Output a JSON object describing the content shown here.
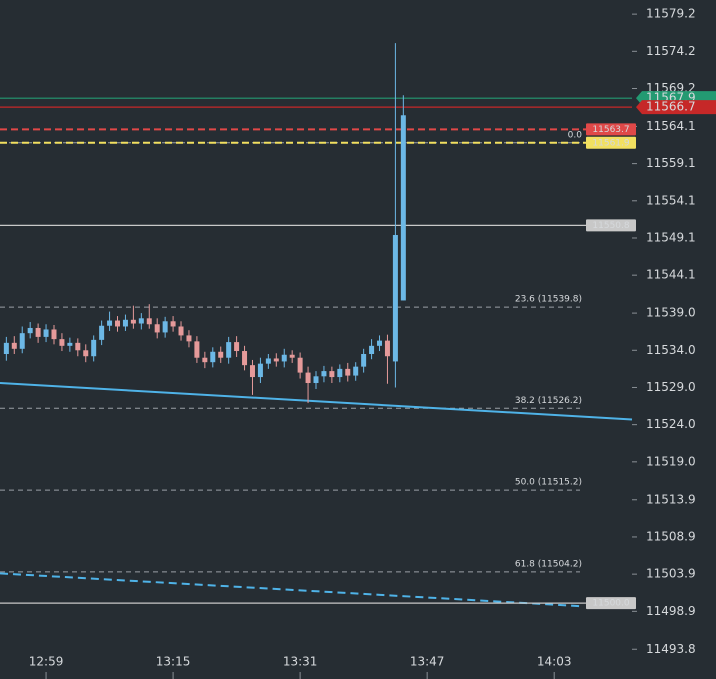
{
  "chart_data": {
    "type": "candlestick",
    "background": "#262d33",
    "up_color": "#6cb8e6",
    "down_color": "#e59a9a",
    "x": [
      774,
      775,
      776,
      777,
      778,
      779,
      780,
      781,
      782,
      783,
      784,
      785,
      786,
      787,
      788,
      789,
      790,
      791,
      792,
      793,
      794,
      795,
      796,
      797,
      798,
      799,
      800,
      801,
      802,
      803,
      804,
      805,
      806,
      807,
      808,
      809,
      810,
      811,
      812,
      813,
      814,
      815,
      816,
      817,
      818,
      819,
      820,
      821,
      822,
      823,
      824
    ],
    "open": [
      11533.5,
      11535.0,
      11534.2,
      11536.3,
      11537.0,
      11535.8,
      11536.8,
      11535.5,
      11534.6,
      11535.0,
      11534.0,
      11533.2,
      11535.4,
      11537.3,
      11538.0,
      11537.2,
      11538.1,
      11537.6,
      11538.3,
      11537.5,
      11536.4,
      11537.9,
      11537.2,
      11536.0,
      11535.2,
      11533.0,
      11532.4,
      11533.8,
      11533.0,
      11535.1,
      11533.9,
      11532.0,
      11530.4,
      11532.2,
      11532.9,
      11532.5,
      11533.4,
      11533.0,
      11531.0,
      11529.6,
      11530.5,
      11531.2,
      11530.4,
      11531.5,
      11530.6,
      11531.8,
      11533.5,
      11534.6,
      11535.3,
      11532.5,
      11540.7
    ],
    "high": [
      11535.8,
      11535.9,
      11537.2,
      11537.8,
      11537.6,
      11537.5,
      11537.4,
      11536.3,
      11535.7,
      11535.6,
      11534.8,
      11536.0,
      11538.0,
      11539.2,
      11538.6,
      11538.8,
      11540.0,
      11539.0,
      11540.2,
      11538.3,
      11538.5,
      11538.6,
      11537.9,
      11536.7,
      11535.9,
      11533.8,
      11534.4,
      11534.5,
      11535.8,
      11535.9,
      11534.6,
      11532.7,
      11533.0,
      11533.5,
      11533.6,
      11534.2,
      11534.0,
      11533.7,
      11531.8,
      11531.2,
      11531.9,
      11531.8,
      11532.1,
      11532.3,
      11532.4,
      11534.2,
      11535.5,
      11536.0,
      11536.1,
      11575.3,
      11568.3
    ],
    "low": [
      11532.6,
      11533.5,
      11533.6,
      11535.6,
      11535.0,
      11535.1,
      11534.8,
      11533.9,
      11533.8,
      11533.2,
      11532.4,
      11532.5,
      11534.7,
      11536.6,
      11536.5,
      11536.6,
      11536.9,
      11536.8,
      11536.9,
      11535.6,
      11535.7,
      11536.5,
      11535.3,
      11534.4,
      11532.3,
      11531.6,
      11531.7,
      11532.3,
      11532.2,
      11533.1,
      11531.3,
      11528.0,
      11529.6,
      11531.5,
      11531.8,
      11531.7,
      11532.3,
      11530.2,
      11526.9,
      11528.8,
      11529.7,
      11529.6,
      11529.7,
      11529.8,
      11529.9,
      11531.0,
      11532.8,
      11533.9,
      11529.5,
      11529.0,
      11540.7
    ],
    "close": [
      11535.0,
      11534.2,
      11536.3,
      11537.0,
      11535.8,
      11536.8,
      11535.5,
      11534.6,
      11535.0,
      11534.0,
      11533.2,
      11535.4,
      11537.3,
      11538.0,
      11537.2,
      11538.1,
      11537.6,
      11538.3,
      11537.5,
      11536.4,
      11537.9,
      11537.2,
      11536.0,
      11535.2,
      11533.0,
      11532.4,
      11533.8,
      11533.0,
      11535.1,
      11533.9,
      11532.0,
      11530.4,
      11532.2,
      11532.9,
      11532.5,
      11533.4,
      11533.0,
      11531.0,
      11529.6,
      11530.5,
      11531.2,
      11530.4,
      11531.5,
      11530.6,
      11531.8,
      11533.5,
      11534.6,
      11535.3,
      11533.2,
      11549.5,
      11565.6
    ],
    "xlim": [
      773.2,
      852.8
    ],
    "ylim": [
      11489.8,
      11581.1
    ],
    "xticks": [
      {
        "value": 779,
        "label": "12:59"
      },
      {
        "value": 795,
        "label": "13:15"
      },
      {
        "value": 811,
        "label": "13:31"
      },
      {
        "value": 827,
        "label": "13:47"
      },
      {
        "value": 843,
        "label": "14:03"
      }
    ],
    "yticks": [
      11579.2,
      11574.2,
      11569.2,
      11564.1,
      11559.1,
      11554.1,
      11549.1,
      11544.1,
      {
        "value": 11539,
        "label": "11539.0"
      },
      {
        "value": 11534,
        "label": "11534.0"
      },
      {
        "value": 11529,
        "label": "11529.0"
      },
      {
        "value": 11524,
        "label": "11524.0"
      },
      {
        "value": 11519,
        "label": "11519.0"
      },
      11513.9,
      11508.9,
      11503.9,
      11498.9,
      11493.8
    ],
    "fib_levels": [
      {
        "label": "0.0",
        "value": 11561.9
      },
      {
        "label": "23.6 (11539.8)",
        "value": 11539.8
      },
      {
        "label": "38.2 (11526.2)",
        "value": 11526.2
      },
      {
        "label": "50.0 (11515.2)",
        "value": 11515.2
      },
      {
        "label": "61.8 (11504.2)",
        "value": 11504.2
      }
    ],
    "levels": [
      {
        "value": 11567.9,
        "color": "#239a72",
        "dashed": false,
        "tag": "axis",
        "tag_text": "#ffffff"
      },
      {
        "value": 11566.7,
        "color": "#c62828",
        "dashed": false,
        "tag": "axis",
        "tag_text": "#ffffff"
      },
      {
        "value": 11563.7,
        "color": "#e04848",
        "dashed": true,
        "tag": "plot",
        "tag_text": "#ffffff"
      },
      {
        "value": 11561.9,
        "color": "#f2e060",
        "dashed": true,
        "tag": "plot",
        "tag_text": "#222222"
      },
      {
        "value": 11550.8,
        "color": "#c8c8c8",
        "dashed": false,
        "tag": "plot",
        "tag_text": "#222222"
      },
      {
        "value": 11500,
        "label": "11500.0",
        "color": "#c8c8c8",
        "dashed": false,
        "tag": "plot",
        "tag_text": "#222222"
      }
    ],
    "trendlines": [
      {
        "color": "#4fb3e8",
        "dashed": false,
        "x": [
          773.2,
          852.8
        ],
        "y": [
          11529.6,
          11524.7
        ]
      },
      {
        "color": "#4fb3e8",
        "dashed": true,
        "x": [
          773.2,
          846.2
        ],
        "y": [
          11504.0,
          11499.6
        ]
      }
    ]
  }
}
